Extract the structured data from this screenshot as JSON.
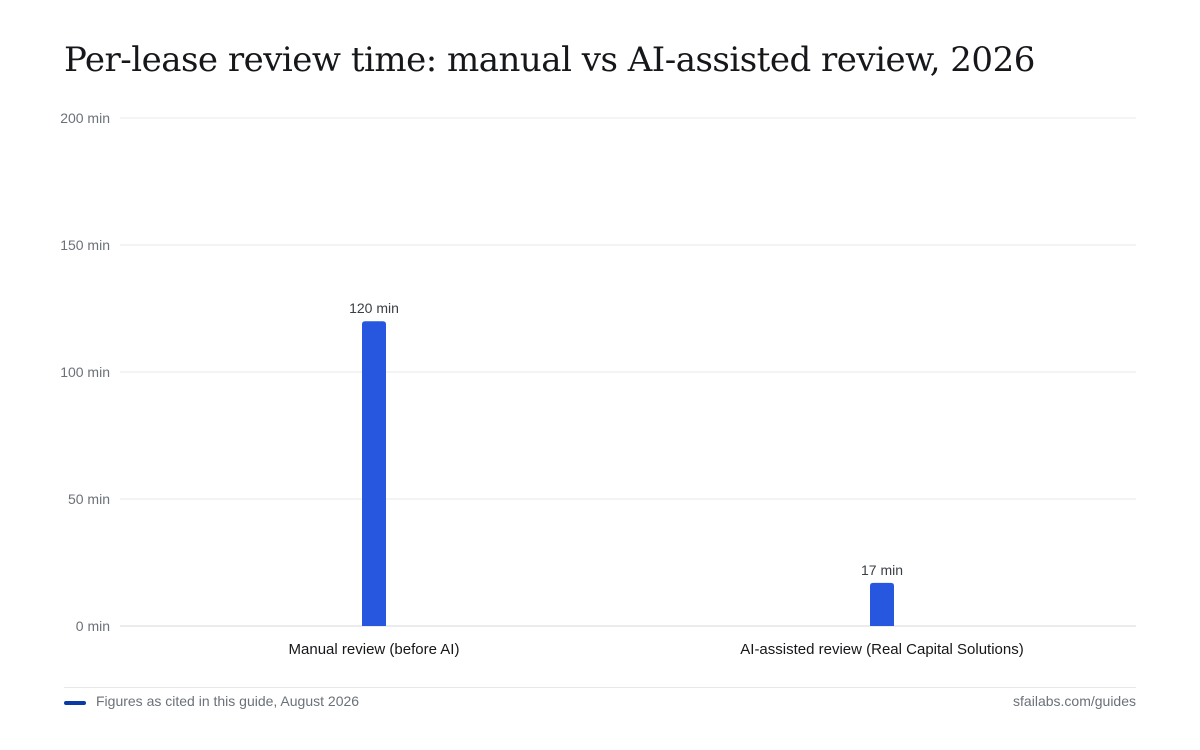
{
  "footer": {
    "note": "Figures as cited in this guide, August 2026",
    "source": "sfailabs.com/guides"
  },
  "colors": {
    "bar": "#2757de",
    "grid": "#e6e8eb",
    "axis_text": "#6b7178",
    "footer_swatch": "#0b3aa6"
  },
  "chart_data": {
    "type": "bar",
    "title": "Per-lease review time: manual vs AI-assisted review, 2026",
    "xlabel": "",
    "ylabel": "",
    "categories": [
      "Manual review (before AI)",
      "AI-assisted review (Real Capital Solutions)"
    ],
    "values": [
      120,
      17
    ],
    "data_labels": [
      "120 min",
      "17 min"
    ],
    "unit": "min",
    "ylim": [
      0,
      200
    ],
    "yticks": [
      0,
      50,
      100,
      150,
      200
    ],
    "ytick_labels": [
      "0 min",
      "50 min",
      "100 min",
      "150 min",
      "200 min"
    ],
    "grid": true,
    "legend": "none"
  }
}
